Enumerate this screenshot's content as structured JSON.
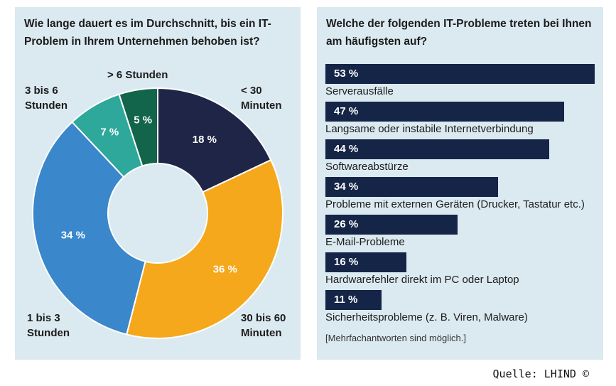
{
  "source": "Quelle: LHIND ©",
  "note": "[Mehrfachantworten sind möglich.]",
  "colors": {
    "panel_bg": "#dbe9f0",
    "bar": "#152547",
    "slice_navy": "#1f2547",
    "slice_orange": "#f5a81c",
    "slice_blue": "#3a87cc",
    "slice_teal": "#2ea89a",
    "slice_green": "#12654a"
  },
  "chart_data": [
    {
      "type": "pie",
      "title": "Wie lange dauert es im Durchschnitt, bis ein IT-Problem in Ihrem Unternehmen behoben ist?",
      "donut": true,
      "slices": [
        {
          "label": [
            "< 30",
            "Minuten"
          ],
          "value": 18,
          "value_label": "18 %",
          "color": "#1f2547",
          "text_color": "#ffffff"
        },
        {
          "label": [
            "30 bis 60",
            "Minuten"
          ],
          "value": 36,
          "value_label": "36 %",
          "color": "#f5a81c",
          "text_color": "#ffffff"
        },
        {
          "label": [
            "1 bis 3",
            "Stunden"
          ],
          "value": 34,
          "value_label": "34 %",
          "color": "#3a87cc",
          "text_color": "#ffffff"
        },
        {
          "label": [
            "3 bis 6",
            "Stunden"
          ],
          "value": 7,
          "value_label": "7 %",
          "color": "#2ea89a",
          "text_color": "#ffffff"
        },
        {
          "label": [
            "> 6 Stunden"
          ],
          "value": 5,
          "value_label": "5 %",
          "color": "#12654a",
          "text_color": "#ffffff"
        }
      ]
    },
    {
      "type": "bar",
      "orientation": "horizontal",
      "title": "Welche der folgenden IT-Probleme treten bei Ihnen am häufigsten auf?",
      "xlim": [
        0,
        53
      ],
      "categories": [
        "Serverausfälle",
        "Langsame oder instabile Internetverbindung",
        "Softwareabstürze",
        "Probleme mit externen Geräten (Drucker, Tastatur etc.)",
        "E-Mail-Probleme",
        "Hardwarefehler direkt im PC oder Laptop",
        "Sicherheitsprobleme (z. B. Viren, Malware)"
      ],
      "values": [
        53,
        47,
        44,
        34,
        26,
        16,
        11
      ],
      "value_labels": [
        "53 %",
        "47 %",
        "44 %",
        "34 %",
        "26 %",
        "16 %",
        "11 %"
      ]
    }
  ]
}
